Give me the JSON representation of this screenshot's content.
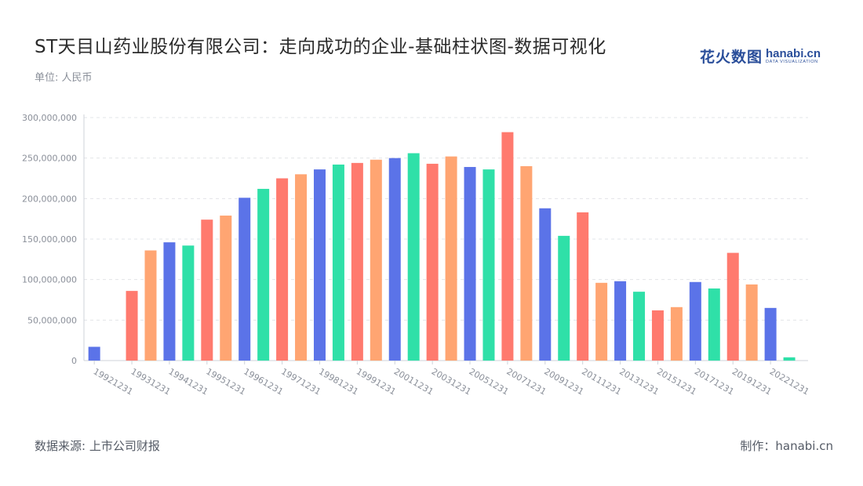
{
  "title": "ST天目山药业股份有限公司：走向成功的企业-基础柱状图-数据可视化",
  "unit_label": "单位: 人民币",
  "brand": {
    "cn": "花火数图",
    "en": "hanabi.cn",
    "en_sub": "DATA VISUALIZATION"
  },
  "footer": {
    "source": "数据来源: 上市公司财报",
    "credit": "制作：hanabi.cn"
  },
  "palette": [
    "#5b73e8",
    "#2fe0a8",
    "#ff7a6e",
    "#ffa572"
  ],
  "chart_data": {
    "type": "bar",
    "title": "ST天目山药业股份有限公司：走向成功的企业-基础柱状图-数据可视化",
    "xlabel": "",
    "ylabel": "",
    "ylim": [
      0,
      300000000
    ],
    "yticks": [
      0,
      50000000,
      100000000,
      150000000,
      200000000,
      250000000,
      300000000
    ],
    "ytick_labels": [
      "0",
      "50,000,000",
      "100,000,000",
      "150,000,000",
      "200,000,000",
      "250,000,000",
      "300,000,000"
    ],
    "grid": true,
    "categories": [
      "19921231",
      "19921231b",
      "19931231",
      "19931231b",
      "19941231",
      "19941231b",
      "19951231",
      "19951231b",
      "19961231",
      "19961231b",
      "19971231",
      "19971231b",
      "19981231",
      "19981231b",
      "19991231",
      "19991231b",
      "20011231",
      "20011231b",
      "20031231",
      "20031231b",
      "20051231",
      "20051231b",
      "20071231",
      "20071231b",
      "20091231",
      "20091231b",
      "20111231",
      "20111231b",
      "20131231",
      "20131231b",
      "20151231",
      "20151231b",
      "20171231",
      "20171231b",
      "20191231",
      "20191231b",
      "20221231"
    ],
    "x_tick_labels": [
      "19921231",
      "19931231",
      "19941231",
      "19951231",
      "19961231",
      "19971231",
      "19981231",
      "19991231",
      "20011231",
      "20031231",
      "20051231",
      "20071231",
      "20091231",
      "20111231",
      "20131231",
      "20151231",
      "20171231",
      "20191231",
      "20221231"
    ],
    "x_tick_positions": [
      0,
      2,
      4,
      6,
      8,
      10,
      12,
      14,
      16,
      18,
      20,
      22,
      24,
      26,
      28,
      30,
      32,
      34,
      36
    ],
    "values": [
      17000000,
      0,
      86000000,
      136000000,
      146000000,
      142000000,
      174000000,
      179000000,
      201000000,
      212000000,
      225000000,
      230000000,
      236000000,
      242000000,
      244000000,
      248000000,
      250000000,
      256000000,
      243000000,
      252000000,
      239000000,
      236000000,
      282000000,
      240000000,
      188000000,
      154000000,
      183000000,
      96000000,
      98000000,
      85000000,
      62000000,
      66000000,
      97000000,
      89000000,
      133000000,
      94000000,
      65000000
    ],
    "extra_last_value": 4000000
  }
}
